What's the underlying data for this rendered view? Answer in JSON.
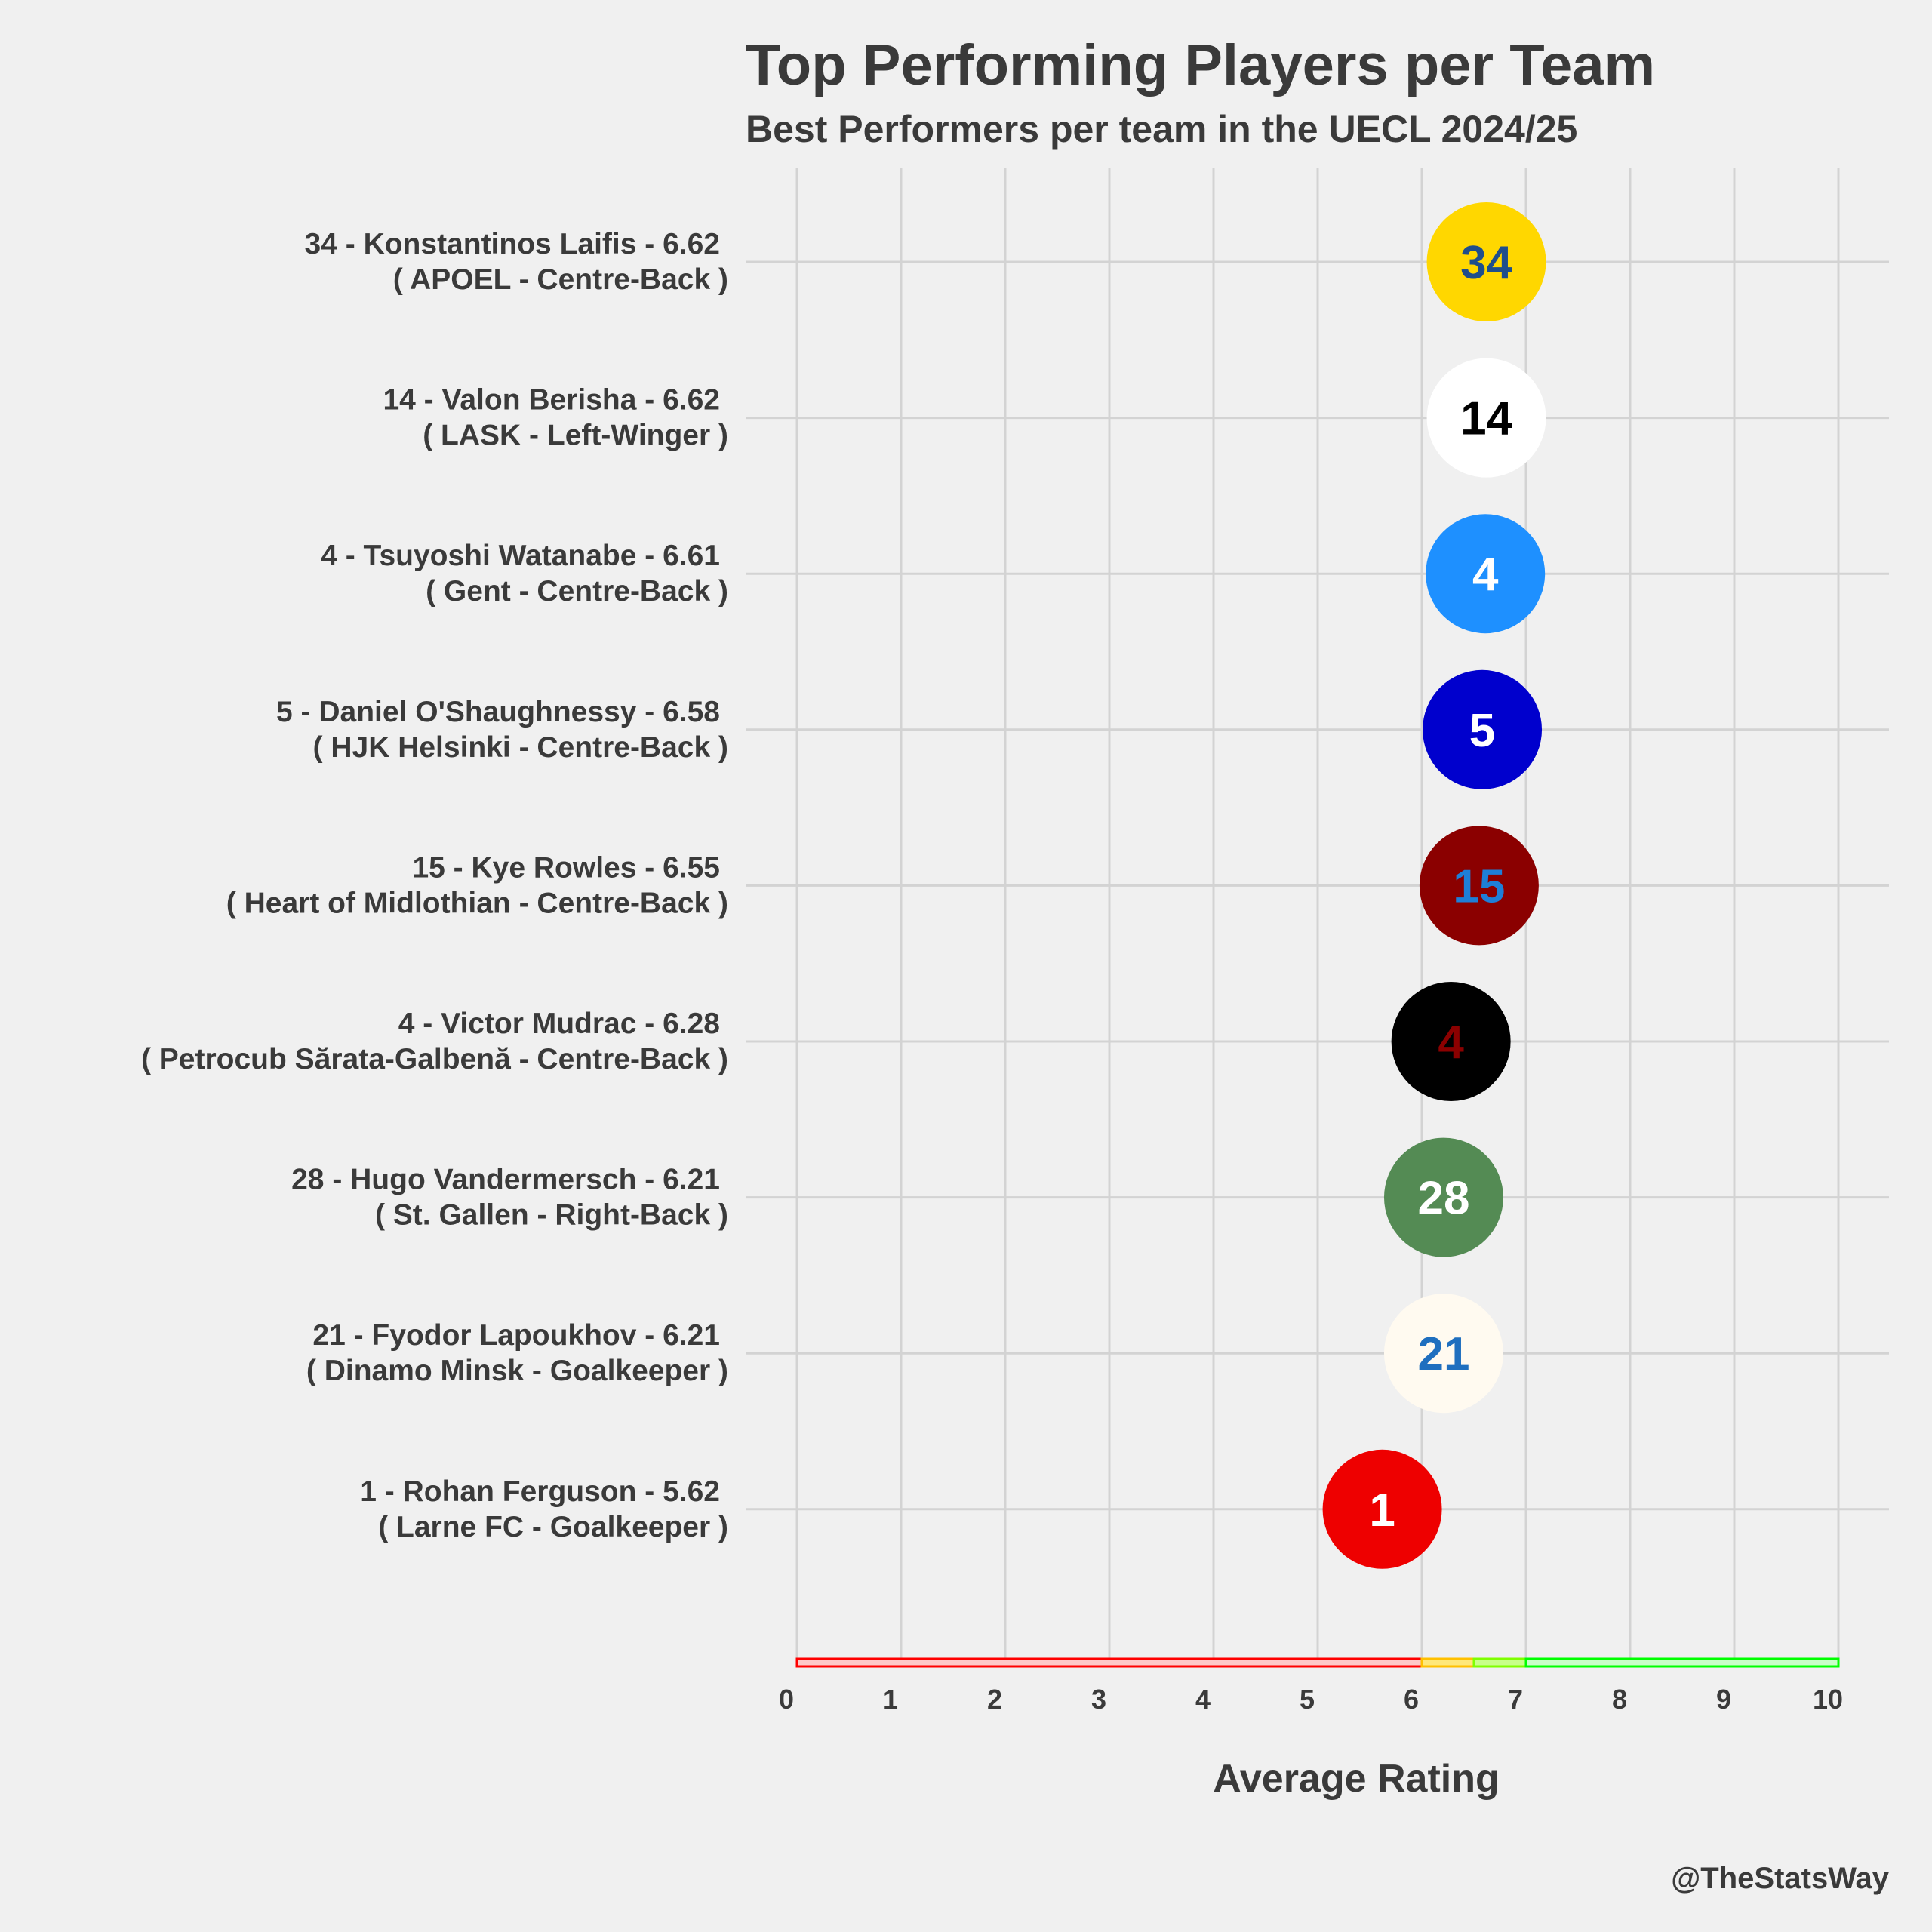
{
  "chart_data": {
    "type": "scatter",
    "title": "Top Performing Players per Team",
    "subtitle": "Best Performers per team in the UECL 2024/25",
    "xlabel": "Average Rating",
    "caption": "@TheStatsWay",
    "xlim": [
      0,
      10
    ],
    "x_ticks": [
      "0",
      "1",
      "2",
      "3",
      "4",
      "5",
      "6",
      "7",
      "8",
      "9",
      "10"
    ],
    "grid": true,
    "players": [
      {
        "number": "34",
        "name": "Konstantinos Laifis",
        "rating": 6.62,
        "team": "APOEL",
        "position": "Centre-Back",
        "label_line1": "34 - Konstantinos Laifis - 6.62",
        "label_line2": "( APOEL - Centre-Back )",
        "fill": "#ffd700",
        "text_color": "#1f4e8c"
      },
      {
        "number": "14",
        "name": "Valon Berisha",
        "rating": 6.62,
        "team": "LASK",
        "position": "Left-Winger",
        "label_line1": "14 - Valon Berisha - 6.62",
        "label_line2": "( LASK - Left-Winger )",
        "fill": "#ffffff",
        "text_color": "#000000"
      },
      {
        "number": "4",
        "name": "Tsuyoshi Watanabe",
        "rating": 6.61,
        "team": "Gent",
        "position": "Centre-Back",
        "label_line1": "4 - Tsuyoshi Watanabe - 6.61",
        "label_line2": "( Gent - Centre-Back )",
        "fill": "#1e90ff",
        "text_color": "#ffffff"
      },
      {
        "number": "5",
        "name": "Daniel O'Shaughnessy",
        "rating": 6.58,
        "team": "HJK Helsinki",
        "position": "Centre-Back",
        "label_line1": "5 - Daniel O'Shaughnessy - 6.58",
        "label_line2": "( HJK Helsinki - Centre-Back )",
        "fill": "#0000cd",
        "text_color": "#ffffff"
      },
      {
        "number": "15",
        "name": "Kye Rowles",
        "rating": 6.55,
        "team": "Heart of Midlothian",
        "position": "Centre-Back",
        "label_line1": "15 - Kye Rowles - 6.55",
        "label_line2": "( Heart of Midlothian - Centre-Back )",
        "fill": "#8b0000",
        "text_color": "#1e7fd8"
      },
      {
        "number": "4",
        "name": "Victor Mudrac",
        "rating": 6.28,
        "team": "Petrocub Sărata-Galbenă",
        "position": "Centre-Back",
        "label_line1": "4 - Victor Mudrac - 6.28",
        "label_line2": "( Petrocub Sărata-Galbenă - Centre-Back )",
        "fill": "#000000",
        "text_color": "#8b0000"
      },
      {
        "number": "28",
        "name": "Hugo Vandermersch",
        "rating": 6.21,
        "team": "St. Gallen",
        "position": "Right-Back",
        "label_line1": "28 - Hugo Vandermersch - 6.21",
        "label_line2": "( St. Gallen - Right-Back )",
        "fill": "#548b54",
        "text_color": "#ffffff"
      },
      {
        "number": "21",
        "name": "Fyodor Lapoukhov",
        "rating": 6.21,
        "team": "Dinamo Minsk",
        "position": "Goalkeeper",
        "label_line1": "21 - Fyodor Lapoukhov - 6.21",
        "label_line2": "( Dinamo Minsk - Goalkeeper )",
        "fill": "#fffaf0",
        "text_color": "#1f6fbf"
      },
      {
        "number": "1",
        "name": "Rohan Ferguson",
        "rating": 5.62,
        "team": "Larne FC",
        "position": "Goalkeeper",
        "label_line1": "1 - Rohan Ferguson - 5.62",
        "label_line2": "( Larne FC - Goalkeeper )",
        "fill": "#ee0000",
        "text_color": "#ffffff"
      }
    ],
    "rating_bands": [
      {
        "from": 0,
        "to": 6.0,
        "fill": "#ffc8c8",
        "stroke": "#ff0000"
      },
      {
        "from": 6.0,
        "to": 6.5,
        "fill": "#ffe87a",
        "stroke": "#ffc000"
      },
      {
        "from": 6.5,
        "to": 7.0,
        "fill": "#c8ff8a",
        "stroke": "#7fff00"
      },
      {
        "from": 7.0,
        "to": 10.0,
        "fill": "#c8ffc8",
        "stroke": "#00ff00"
      }
    ]
  }
}
